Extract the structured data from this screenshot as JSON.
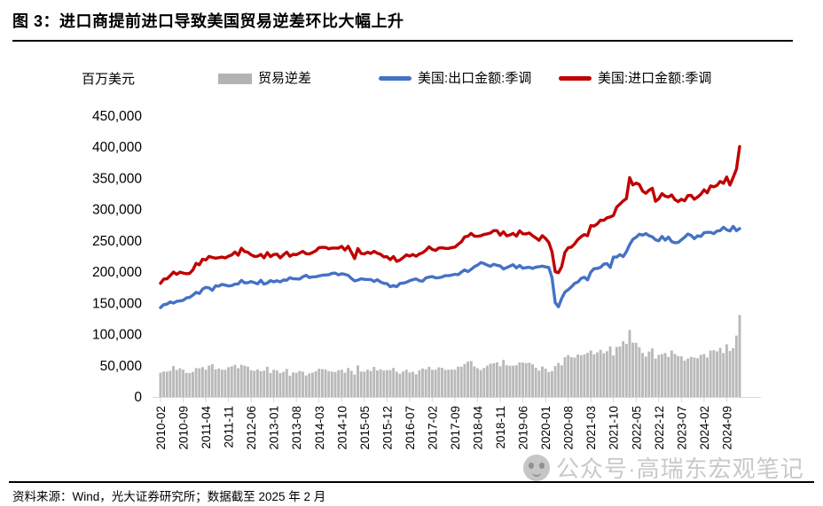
{
  "title": "图 3：进口商提前进口导致美国贸易逆差环比大幅上升",
  "y_axis_unit": "百万美元",
  "legend": [
    {
      "label": "贸易逆差",
      "type": "bar",
      "color": "#b3b3b3"
    },
    {
      "label": "美国:出口金额:季调",
      "type": "line",
      "color": "#4472c4"
    },
    {
      "label": "美国:进口金额:季调",
      "type": "line",
      "color": "#c00000"
    }
  ],
  "source_note": "资料来源：Wind，光大证券研究所；数据截至 2025 年 2 月",
  "watermark_text": "公众号·高瑞东宏观笔记",
  "chart_data": {
    "type": "bar+line",
    "unit": "百万美元",
    "x_start": "2010-02",
    "x_end": "2025-01",
    "x_frequency": "monthly",
    "ylim": [
      0,
      450000
    ],
    "grid": false,
    "legend_position": "top",
    "y_ticks": [
      0,
      50000,
      100000,
      150000,
      200000,
      250000,
      300000,
      350000,
      400000,
      450000
    ],
    "y_tick_labels": [
      "0",
      "50,000",
      "100,000",
      "150,000",
      "200,000",
      "250,000",
      "300,000",
      "350,000",
      "400,000",
      "450,000"
    ],
    "x_tick_labels": [
      "2010-02",
      "2010-09",
      "2011-04",
      "2011-11",
      "2012-06",
      "2013-01",
      "2013-08",
      "2014-03",
      "2014-10",
      "2015-05",
      "2015-12",
      "2016-07",
      "2017-02",
      "2017-09",
      "2018-04",
      "2018-11",
      "2019-06",
      "2020-01",
      "2020-08",
      "2021-03",
      "2021-10",
      "2022-05",
      "2022-12",
      "2023-07",
      "2024-02",
      "2024-09"
    ],
    "x_tick_month_step": 7,
    "series": [
      {
        "name": "贸易逆差",
        "type": "bar",
        "color": "#b9b9b9",
        "values": [
          38900,
          40900,
          40600,
          42000,
          49700,
          43300,
          46100,
          43700,
          38700,
          38400,
          40200,
          46400,
          46000,
          48000,
          43800,
          50200,
          52700,
          44400,
          45600,
          43800,
          43500,
          47800,
          49100,
          51400,
          46000,
          51600,
          50200,
          48700,
          42900,
          42000,
          44100,
          41400,
          42100,
          48600,
          38300,
          43700,
          42600,
          38400,
          40300,
          45000,
          34200,
          39300,
          38800,
          41800,
          40600,
          34600,
          37800,
          39100,
          41500,
          45400,
          44700,
          44100,
          41500,
          40600,
          40100,
          42900,
          43800,
          39000,
          46500,
          41900,
          35900,
          50600,
          40700,
          40700,
          43700,
          41700,
          48300,
          42500,
          44400,
          42400,
          43200,
          43200,
          46600,
          40600,
          37400,
          40900,
          43800,
          39400,
          40400,
          36400,
          42700,
          45600,
          44300,
          48500,
          43600,
          43700,
          47500,
          46800,
          43600,
          43700,
          44000,
          43600,
          48700,
          48500,
          52900,
          56600,
          57600,
          49000,
          46100,
          43100,
          46500,
          50300,
          53300,
          54000,
          55500,
          49300,
          59700,
          50900,
          50000,
          50100,
          50900,
          55500,
          55200,
          54200,
          54900,
          52400,
          46800,
          42300,
          48900,
          45500,
          40000,
          41500,
          49600,
          54600,
          50700,
          63600,
          67100,
          63800,
          63100,
          68100,
          66800,
          68300,
          70700,
          74500,
          68300,
          71300,
          75700,
          70100,
          73300,
          80900,
          66500,
          80200,
          80800,
          89300,
          85200,
          107400,
          87100,
          86800,
          79600,
          70600,
          64600,
          72900,
          77800,
          61500,
          67500,
          68600,
          70500,
          64200,
          74600,
          69000,
          65500,
          65000,
          58300,
          61600,
          64200,
          63200,
          62200,
          67400,
          68900,
          63300,
          74500,
          75000,
          73100,
          78800,
          70400,
          84400,
          73700,
          78200,
          98400,
          131400
        ]
      },
      {
        "name": "美国:出口金额:季调",
        "type": "line",
        "color": "#4472c4",
        "values": [
          143300,
          147900,
          148800,
          152300,
          150500,
          153200,
          153900,
          154900,
          158700,
          159600,
          163300,
          167700,
          165800,
          172700,
          175600,
          174900,
          170900,
          178000,
          177600,
          180400,
          179200,
          177800,
          178500,
          180800,
          181200,
          186800,
          182900,
          183100,
          185000,
          183300,
          181300,
          187000,
          180800,
          182600,
          186600,
          184500,
          186300,
          184400,
          187400,
          187100,
          191200,
          189300,
          189200,
          188900,
          192700,
          194900,
          191300,
          192500,
          192700,
          193900,
          195100,
          195500,
          195900,
          198000,
          198500,
          195600,
          197500,
          196400,
          194900,
          189900,
          186000,
          187200,
          189300,
          188500,
          188300,
          188200,
          185100,
          187900,
          184300,
          182200,
          181500,
          176800,
          178400,
          176700,
          182000,
          182400,
          183900,
          186300,
          187900,
          189200,
          186400,
          185500,
          190700,
          192100,
          192900,
          191000,
          191100,
          192200,
          194400,
          194400,
          195300,
          196600,
          195900,
          200200,
          203600,
          200900,
          204400,
          208800,
          211200,
          215300,
          213800,
          211100,
          209400,
          212600,
          211000,
          209900,
          205100,
          207300,
          209700,
          211900,
          206800,
          210600,
          206300,
          207200,
          207800,
          206000,
          208100,
          208700,
          209600,
          208400,
          207500,
          191300,
          151100,
          144500,
          158200,
          168100,
          171900,
          176400,
          182000,
          184200,
          190000,
          191900,
          187600,
          200000,
          205600,
          206000,
          207700,
          212800,
          213700,
          207600,
          224200,
          224200,
          228100,
          224800,
          232600,
          244100,
          252600,
          255900,
          260800,
          259300,
          261700,
          258400,
          256600,
          251900,
          250100,
          257200,
          251200,
          256200,
          249000,
          247100,
          247500,
          251700,
          256000,
          261100,
          258800,
          253700,
          258200,
          257200,
          263000,
          263700,
          263700,
          261700,
          265900,
          266600,
          271800,
          267900,
          265900,
          273400,
          266500,
          269800
        ]
      },
      {
        "name": "美国:进口金额:季调",
        "type": "line",
        "color": "#c00000",
        "values": [
          182200,
          188800,
          189400,
          194300,
          200200,
          196500,
          200000,
          198600,
          197400,
          198000,
          203500,
          214100,
          211800,
          220700,
          219400,
          225100,
          223600,
          222400,
          223200,
          224200,
          222700,
          225600,
          227600,
          232200,
          227200,
          238400,
          233100,
          231800,
          227900,
          225300,
          225400,
          228400,
          222900,
          231200,
          224900,
          228200,
          228900,
          222800,
          227700,
          232100,
          225400,
          228600,
          228000,
          230700,
          233300,
          229500,
          229100,
          231600,
          234200,
          239300,
          239800,
          239600,
          237400,
          238600,
          238600,
          238500,
          241300,
          235400,
          241400,
          231800,
          221900,
          237800,
          230000,
          229200,
          232000,
          229900,
          233400,
          230400,
          228700,
          224600,
          224700,
          220000,
          225000,
          217300,
          219400,
          223300,
          227700,
          225700,
          228300,
          225600,
          229100,
          231100,
          235000,
          240600,
          236500,
          234700,
          238600,
          239000,
          238000,
          238100,
          239300,
          240200,
          244600,
          248700,
          256500,
          257500,
          262000,
          257800,
          257300,
          258400,
          260300,
          261400,
          262700,
          266600,
          266500,
          259200,
          264800,
          258200,
          259700,
          262000,
          257700,
          266100,
          261500,
          261400,
          262700,
          258400,
          254900,
          251000,
          258500,
          253900,
          247500,
          232800,
          200700,
          199100,
          208900,
          231700,
          239000,
          240200,
          245100,
          252300,
          256800,
          260200,
          258300,
          274500,
          273900,
          277300,
          283400,
          282900,
          287000,
          288500,
          290700,
          304400,
          308900,
          314100,
          317800,
          351500,
          339700,
          342700,
          340400,
          329900,
          326300,
          331300,
          334400,
          313400,
          317600,
          325800,
          321700,
          320400,
          323600,
          316100,
          313000,
          316700,
          314300,
          322700,
          323000,
          316900,
          320400,
          324600,
          331900,
          327000,
          338200,
          336700,
          339000,
          345400,
          342200,
          352300,
          339600,
          351600,
          364900,
          401200
        ]
      }
    ]
  }
}
